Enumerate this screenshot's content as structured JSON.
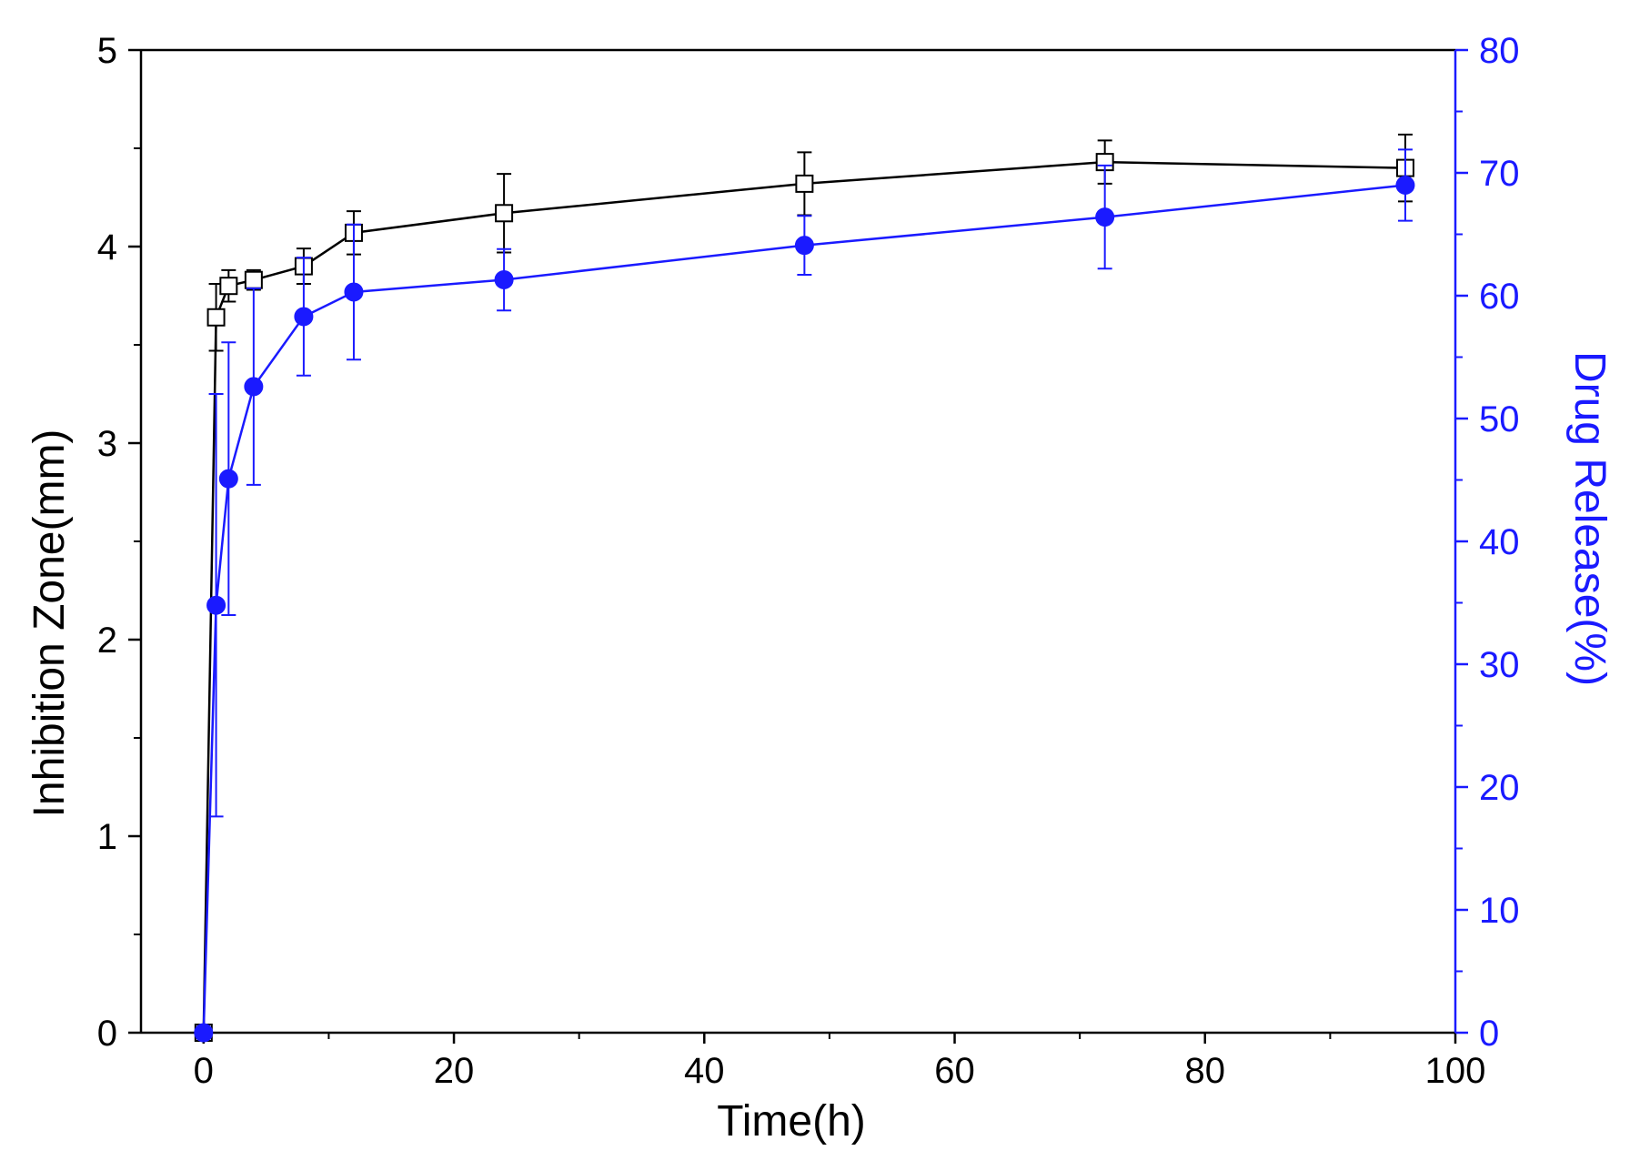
{
  "chart_data": {
    "type": "line",
    "xlabel": "Time(h)",
    "ylabel_left": "Inhibition Zone(mm)",
    "ylabel_right": "Drug Release(%)",
    "xlim": [
      -5,
      100
    ],
    "ylim_left": [
      0,
      5
    ],
    "ylim_right": [
      0,
      80
    ],
    "x_ticks": [
      0,
      20,
      40,
      60,
      80,
      100
    ],
    "y_left_ticks": [
      0,
      1,
      2,
      3,
      4,
      5
    ],
    "y_right_ticks": [
      0,
      10,
      20,
      30,
      40,
      50,
      60,
      70,
      80
    ],
    "grid": false,
    "series": [
      {
        "axis": "left",
        "marker": "open-square",
        "color": "#000000",
        "x": [
          0,
          1,
          2,
          4,
          8,
          12,
          24,
          48,
          72,
          96
        ],
        "y": [
          0,
          3.64,
          3.8,
          3.83,
          3.9,
          4.07,
          4.17,
          4.32,
          4.43,
          4.4
        ],
        "err": [
          0,
          0.17,
          0.08,
          0.05,
          0.09,
          0.11,
          0.2,
          0.16,
          0.11,
          0.17
        ]
      },
      {
        "axis": "right",
        "marker": "filled-circle",
        "color": "#1a1aff",
        "x": [
          0,
          1,
          2,
          4,
          8,
          12,
          24,
          48,
          72,
          96
        ],
        "y": [
          0,
          34.8,
          45.1,
          52.6,
          58.3,
          60.3,
          61.3,
          64.1,
          66.4,
          69.0
        ],
        "err": [
          0,
          17.2,
          11.1,
          8.0,
          4.8,
          5.5,
          2.5,
          2.4,
          4.2,
          2.9
        ]
      }
    ]
  }
}
